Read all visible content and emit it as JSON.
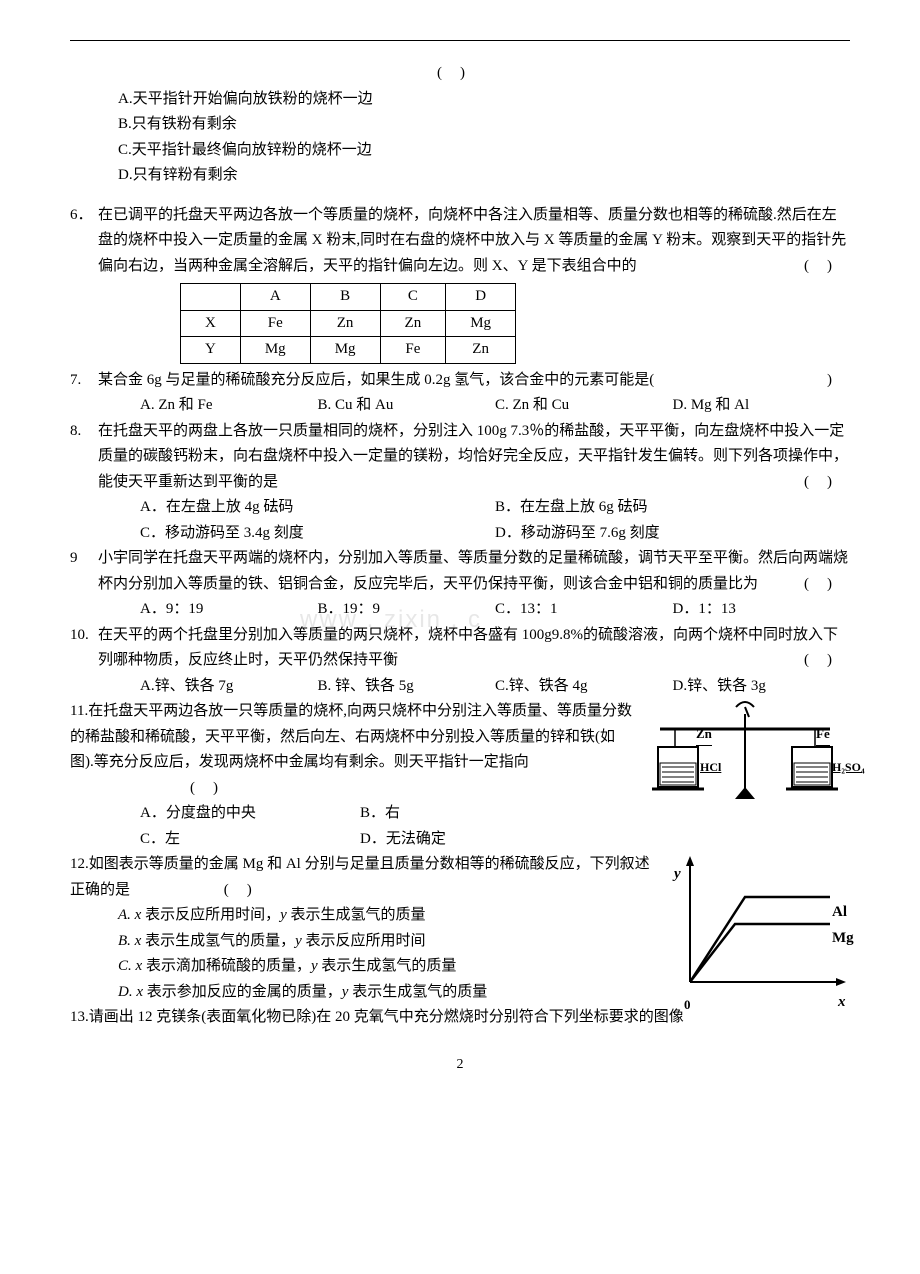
{
  "q5": {
    "options": {
      "A": "A.天平指针开始偏向放铁粉的烧杯一边",
      "B": "B.只有铁粉有剩余",
      "C": "C.天平指针最终偏向放锌粉的烧杯一边",
      "D": "D.只有锌粉有剩余"
    }
  },
  "q6": {
    "num": "6．",
    "text": "在已调平的托盘天平两边各放一个等质量的烧杯，向烧杯中各注入质量相等、质量分数也相等的稀硫酸.然后在左盘的烧杯中投入一定质量的金属 X 粉末,同时在右盘的烧杯中放入与 X 等质量的金属 Y 粉末。观察到天平的指针先偏向右边，当两种金属全溶解后，天平的指针偏向左边。则 X、Y 是下表组合中的",
    "table": {
      "head": [
        "",
        "A",
        "B",
        "C",
        "D"
      ],
      "r1": [
        "X",
        "Fe",
        "Zn",
        "Zn",
        "Mg"
      ],
      "r2": [
        "Y",
        "Mg",
        "Mg",
        "Fe",
        "Zn"
      ]
    }
  },
  "q7": {
    "num": "7.",
    "text": " 某合金 6g 与足量的稀硫酸充分反应后，如果生成 0.2g 氢气，该合金中的元素可能是(",
    "opts": {
      "A": "A. Zn 和 Fe",
      "B": "B. Cu 和 Au",
      "C": "C. Zn 和 Cu",
      "D": "D. Mg 和 Al"
    }
  },
  "q8": {
    "num": "8.",
    "text": " 在托盘天平的两盘上各放一只质量相同的烧杯，分别注入 100g 7.3％的稀盐酸，天平平衡，向左盘烧杯中投入一定质量的碳酸钙粉末，向右盘烧杯中投入一定量的镁粉，均恰好完全反应，天平指针发生偏转。则下列各项操作中，能使天平重新达到平衡的是",
    "opts": {
      "A": "A．在左盘上放 4g 砝码",
      "B": "B．在左盘上放 6g 砝码",
      "C": "C．移动游码至 3.4g 刻度",
      "D": "D．移动游码至 7.6g 刻度"
    }
  },
  "q9": {
    "num": "9",
    "text": " 小宇同学在托盘天平两端的烧杯内，分别加入等质量、等质量分数的足量稀硫酸，调节天平至平衡。然后向两端烧杯内分别加入等质量的铁、铝铜合金，反应完毕后，天平仍保持平衡，则该合金中铝和铜的质量比为",
    "opts": {
      "A": "A．9：19",
      "B": "B．19：9",
      "C": "C．13：1",
      "D": "D．1：13"
    }
  },
  "q10": {
    "num": "10.",
    "text": " 在天平的两个托盘里分别加入等质量的两只烧杯，烧杯中各盛有 100g9.8%的硫酸溶液，向两个烧杯中同时放入下列哪种物质，反应终止时，天平仍然保持平衡",
    "opts": {
      "A": "A.锌、铁各 7g",
      "B": "B. 锌、铁各 5g",
      "C": "C.锌、铁各 4g",
      "D": "D.锌、铁各 3g"
    }
  },
  "q11": {
    "num": "11.",
    "text": "在托盘天平两边各放一只等质量的烧杯,向两只烧杯中分别注入等质量、等质量分数的稀盐酸和稀硫酸，天平平衡，然后向左、右两烧杯中分别投入等质量的锌和铁(如图).等充分反应后，发现两烧杯中金属均有剩余。则天平指针一定指向",
    "opts": {
      "A": "A．分度盘的中央",
      "B": "B．右",
      "C": "C．左",
      "D": "D．无法确定"
    },
    "fig": {
      "zn": "Zn",
      "fe": "Fe",
      "hcl": "HCl",
      "h2so4": "H₂SO₄"
    }
  },
  "q12": {
    "num": "12.",
    "text": "如图表示等质量的金属 Mg 和 Al 分别与足量且质量分数相等的稀硫酸反应，下列叙述正确的是",
    "opts": {
      "A": "A. x 表示反应所用时间，y 表示生成氢气的质量",
      "B": "B. x 表示生成氢气的质量，y 表示反应所用时间",
      "C": "C. x 表示滴加稀硫酸的质量，y 表示生成氢气的质量",
      "D": "D. x 表示参加反应的金属的质量，y 表示生成氢气的质量"
    },
    "fig": {
      "y": "y",
      "x": "x",
      "al": "Al",
      "mg": "Mg",
      "o": "0"
    }
  },
  "q13": {
    "num": "13.",
    "text": "请画出 12 克镁条(表面氧化物已除)在 20 克氧气中充分燃烧时分别符合下列坐标要求的图像"
  },
  "paren": "()",
  "watermark": "www . zixin . c",
  "pagenum": "2"
}
